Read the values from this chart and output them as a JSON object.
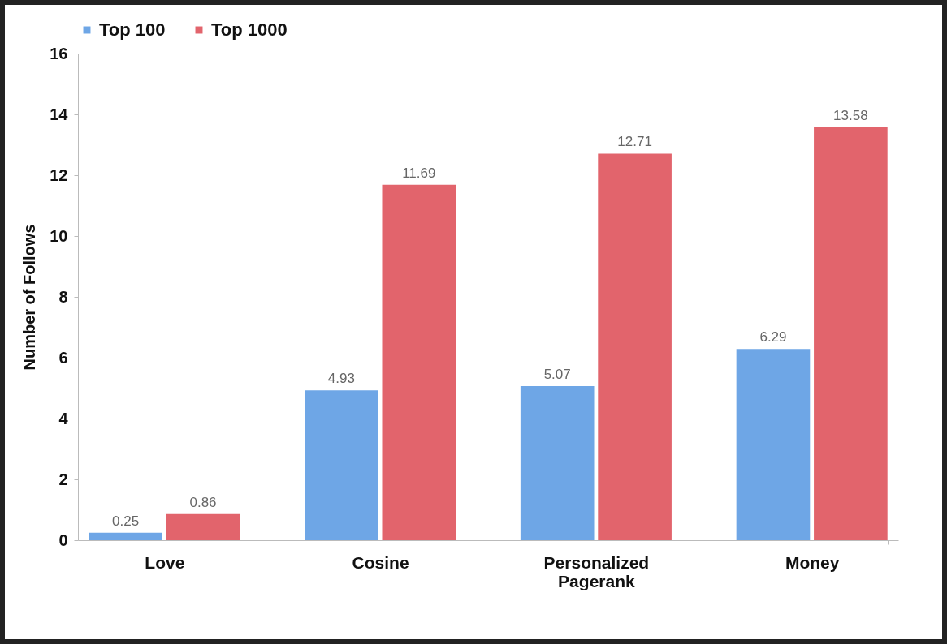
{
  "chart_data": {
    "type": "bar",
    "ylabel": "Number  of  Follows",
    "categories": [
      "Love",
      "Cosine",
      "Personalized Pagerank",
      "Money"
    ],
    "series": [
      {
        "name": "Top 100",
        "color": "#6ea6e6",
        "values": [
          0.25,
          4.93,
          5.07,
          6.29
        ]
      },
      {
        "name": "Top 1000",
        "color": "#e2646c",
        "values": [
          0.86,
          11.69,
          12.71,
          13.58
        ]
      }
    ],
    "ylim": [
      0,
      16
    ],
    "yticks": [
      0,
      2,
      4,
      6,
      8,
      10,
      12,
      14,
      16
    ],
    "data_labels": true,
    "legend": "top",
    "grid": false
  }
}
